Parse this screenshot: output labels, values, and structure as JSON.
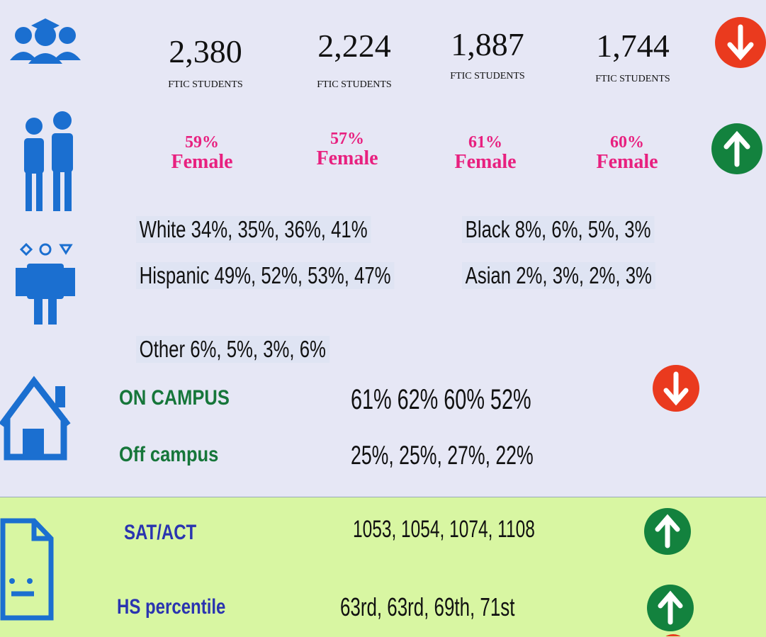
{
  "students": [
    {
      "number": "2,380",
      "label": "FTIC STUDENTS"
    },
    {
      "number": "2,224",
      "label": "FTIC STUDENTS"
    },
    {
      "number": "1,887",
      "label": "FTIC STUDENTS"
    },
    {
      "number": "1,744",
      "label": "FTIC STUDENTS"
    }
  ],
  "gender": [
    {
      "percent": "59%",
      "label": "Female"
    },
    {
      "percent": "57%",
      "label": "Female"
    },
    {
      "percent": "61%",
      "label": "Female"
    },
    {
      "percent": "60%",
      "label": "Female"
    }
  ],
  "ethnicity": {
    "white": "White 34%, 35%, 36%, 41%",
    "black": "Black 8%, 6%, 5%, 3%",
    "hispanic": "Hispanic 49%, 52%, 53%, 47%",
    "asian": "Asian 2%, 3%, 2%, 3%",
    "other": "Other 6%, 5%, 3%, 6%"
  },
  "housing": {
    "on_label": "ON CAMPUS",
    "on_values": "61% 62% 60% 52%",
    "off_label": "Off campus",
    "off_values": "25%, 25%, 27%, 22%"
  },
  "academics": {
    "sat_label": "SAT/ACT",
    "sat_values": "1053, 1054, 1074, 1108",
    "hs_label": "HS percentile",
    "hs_values": "63rd, 63rd, 69th, 71st"
  }
}
